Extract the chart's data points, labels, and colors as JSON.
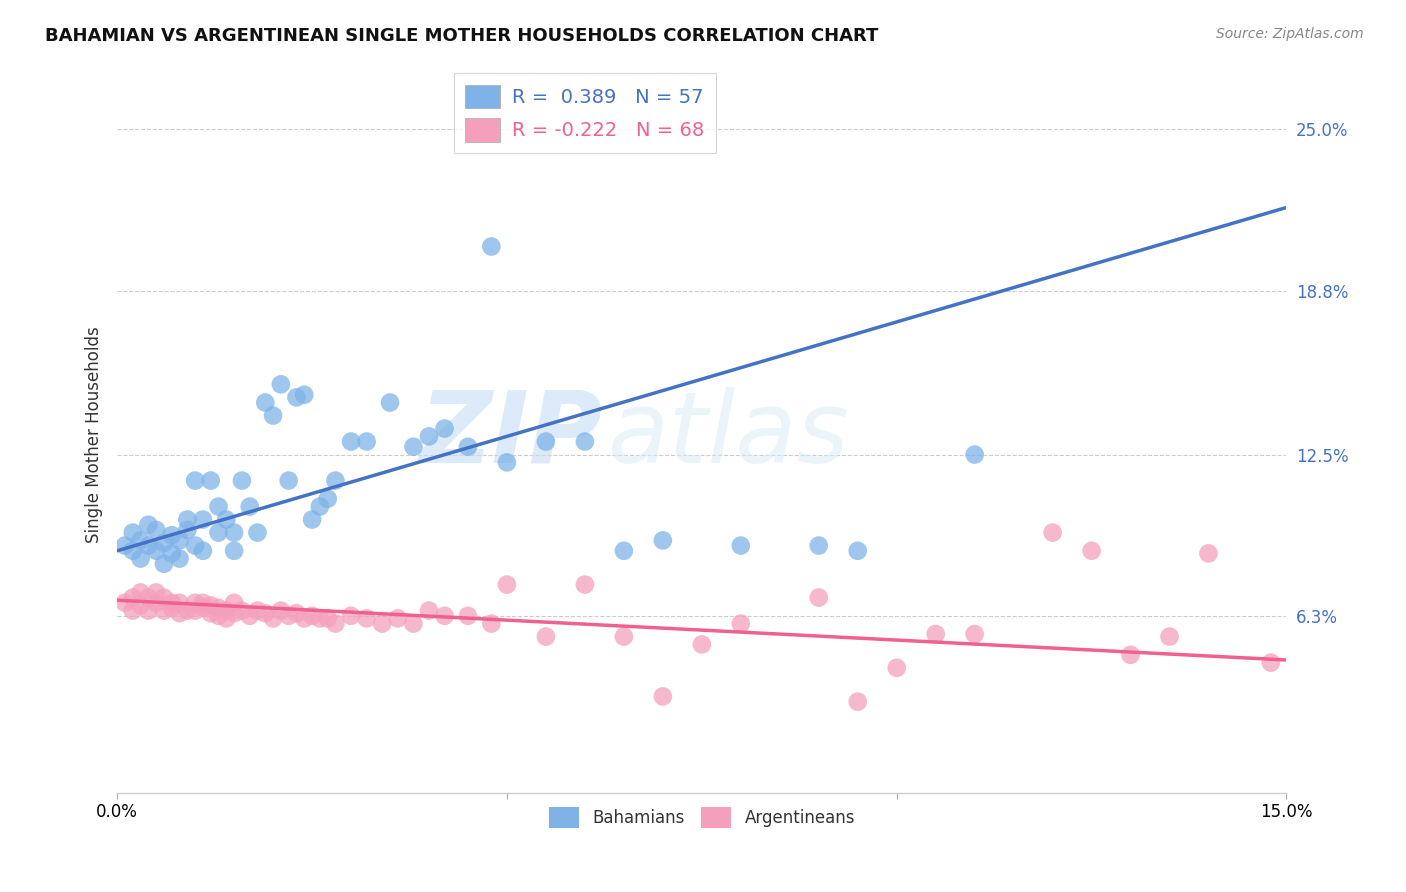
{
  "title": "BAHAMIAN VS ARGENTINEAN SINGLE MOTHER HOUSEHOLDS CORRELATION CHART",
  "source": "Source: ZipAtlas.com",
  "ylabel": "Single Mother Households",
  "y_tick_labels": [
    "6.3%",
    "12.5%",
    "18.8%",
    "25.0%"
  ],
  "y_ticks": [
    0.063,
    0.125,
    0.188,
    0.25
  ],
  "xlim": [
    0.0,
    0.15
  ],
  "ylim": [
    -0.005,
    0.27
  ],
  "bahamians_R": 0.389,
  "bahamians_N": 57,
  "argentineans_R": -0.222,
  "argentineans_N": 68,
  "blue_color": "#7FB3E8",
  "pink_color": "#F4A0BC",
  "blue_line_color": "#4472C4",
  "pink_line_color": "#F06090",
  "watermark_zip": "ZIP",
  "watermark_atlas": "atlas",
  "bah_x": [
    0.001,
    0.002,
    0.002,
    0.003,
    0.003,
    0.004,
    0.004,
    0.005,
    0.005,
    0.006,
    0.006,
    0.007,
    0.007,
    0.008,
    0.008,
    0.009,
    0.009,
    0.01,
    0.01,
    0.011,
    0.011,
    0.012,
    0.013,
    0.013,
    0.014,
    0.015,
    0.015,
    0.016,
    0.017,
    0.018,
    0.019,
    0.02,
    0.021,
    0.022,
    0.023,
    0.024,
    0.025,
    0.026,
    0.027,
    0.028,
    0.03,
    0.032,
    0.035,
    0.038,
    0.04,
    0.042,
    0.045,
    0.048,
    0.05,
    0.055,
    0.06,
    0.065,
    0.07,
    0.08,
    0.09,
    0.095,
    0.11
  ],
  "bah_y": [
    0.09,
    0.088,
    0.095,
    0.085,
    0.092,
    0.09,
    0.098,
    0.088,
    0.096,
    0.083,
    0.091,
    0.087,
    0.094,
    0.085,
    0.092,
    0.1,
    0.096,
    0.09,
    0.115,
    0.088,
    0.1,
    0.115,
    0.095,
    0.105,
    0.1,
    0.088,
    0.095,
    0.115,
    0.105,
    0.095,
    0.145,
    0.14,
    0.152,
    0.115,
    0.147,
    0.148,
    0.1,
    0.105,
    0.108,
    0.115,
    0.13,
    0.13,
    0.145,
    0.128,
    0.132,
    0.135,
    0.128,
    0.205,
    0.122,
    0.13,
    0.13,
    0.088,
    0.092,
    0.09,
    0.09,
    0.088,
    0.125
  ],
  "arg_x": [
    0.001,
    0.002,
    0.002,
    0.003,
    0.003,
    0.004,
    0.004,
    0.005,
    0.005,
    0.006,
    0.006,
    0.007,
    0.007,
    0.008,
    0.008,
    0.009,
    0.01,
    0.01,
    0.011,
    0.011,
    0.012,
    0.012,
    0.013,
    0.013,
    0.014,
    0.014,
    0.015,
    0.015,
    0.016,
    0.017,
    0.018,
    0.019,
    0.02,
    0.021,
    0.022,
    0.023,
    0.024,
    0.025,
    0.026,
    0.027,
    0.028,
    0.03,
    0.032,
    0.034,
    0.036,
    0.038,
    0.04,
    0.042,
    0.045,
    0.048,
    0.05,
    0.055,
    0.06,
    0.065,
    0.07,
    0.075,
    0.08,
    0.09,
    0.095,
    0.1,
    0.105,
    0.11,
    0.12,
    0.125,
    0.13,
    0.135,
    0.14,
    0.148
  ],
  "arg_y": [
    0.068,
    0.07,
    0.065,
    0.072,
    0.067,
    0.065,
    0.07,
    0.068,
    0.072,
    0.065,
    0.07,
    0.066,
    0.068,
    0.064,
    0.068,
    0.065,
    0.068,
    0.065,
    0.066,
    0.068,
    0.064,
    0.067,
    0.063,
    0.066,
    0.062,
    0.065,
    0.064,
    0.068,
    0.065,
    0.063,
    0.065,
    0.064,
    0.062,
    0.065,
    0.063,
    0.064,
    0.062,
    0.063,
    0.062,
    0.062,
    0.06,
    0.063,
    0.062,
    0.06,
    0.062,
    0.06,
    0.065,
    0.063,
    0.063,
    0.06,
    0.075,
    0.055,
    0.075,
    0.055,
    0.032,
    0.052,
    0.06,
    0.07,
    0.03,
    0.043,
    0.056,
    0.056,
    0.095,
    0.088,
    0.048,
    0.055,
    0.087,
    0.045
  ]
}
